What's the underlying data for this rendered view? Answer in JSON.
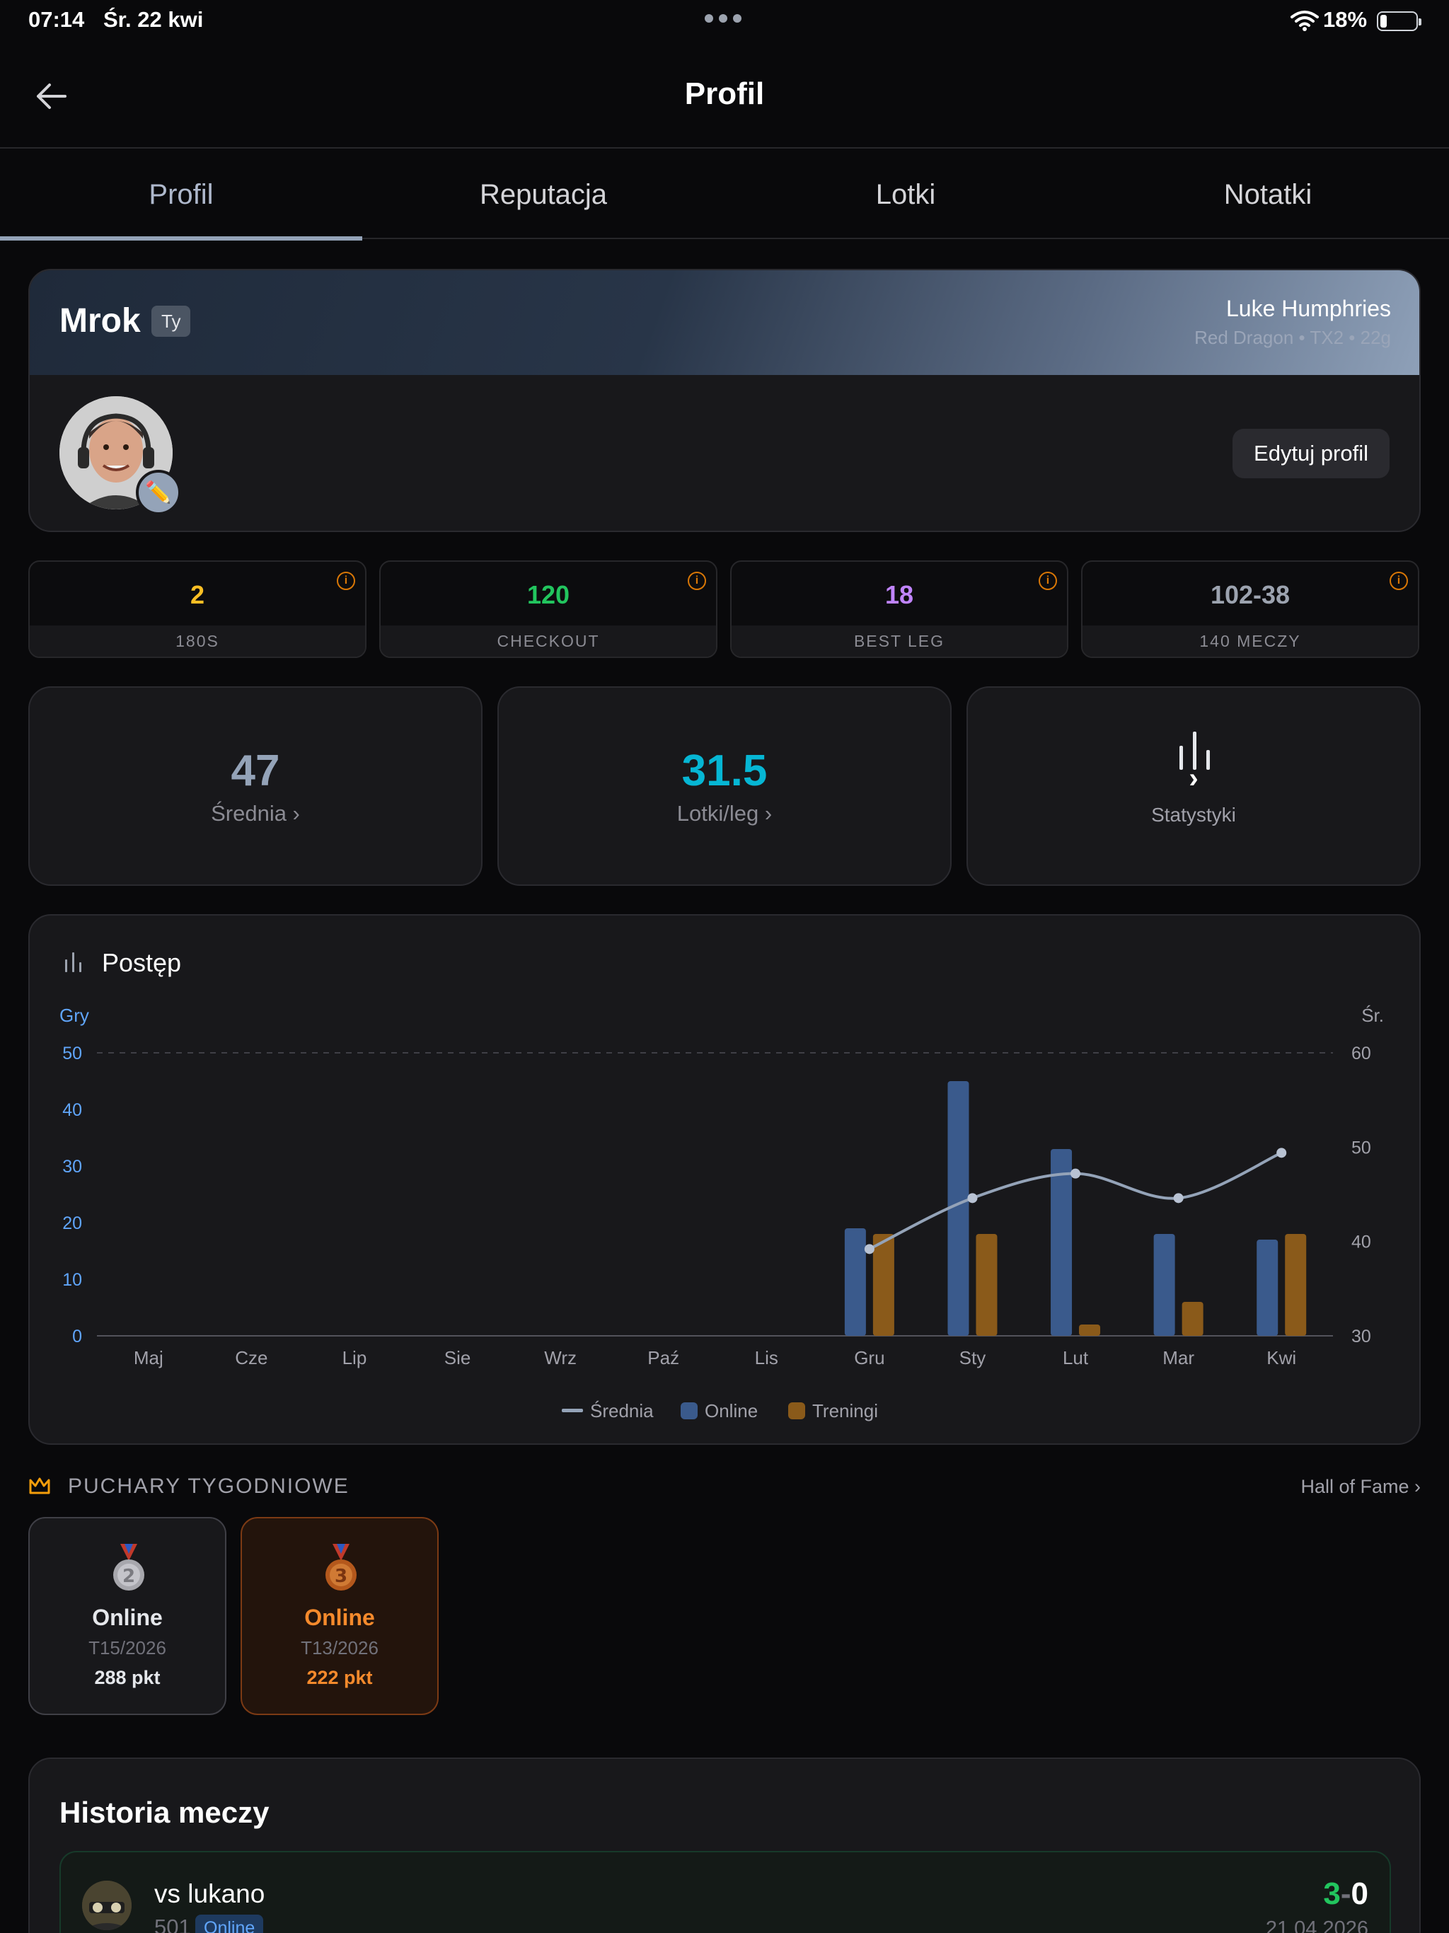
{
  "status_bar": {
    "time": "07:14",
    "date": "Śr. 22 kwi",
    "battery": "18%"
  },
  "header": {
    "title": "Profil"
  },
  "tabs": [
    {
      "label": "Profil",
      "active": true
    },
    {
      "label": "Reputacja",
      "active": false
    },
    {
      "label": "Lotki",
      "active": false
    },
    {
      "label": "Notatki",
      "active": false
    }
  ],
  "profile": {
    "nickname": "Mrok",
    "you_badge": "Ty",
    "player": "Luke Humphries",
    "darts": "Red Dragon • TX2 • 22g",
    "edit_label": "Edytuj profil"
  },
  "stats": [
    {
      "value": "2",
      "label": "180S",
      "color": "#fbbf24"
    },
    {
      "value": "120",
      "label": "CHECKOUT",
      "color": "#22c55e"
    },
    {
      "value": "18",
      "label": "BEST LEG",
      "color": "#c084fc"
    },
    {
      "value": "102-38",
      "label": "140 MECZY",
      "color": "#9ca3af"
    }
  ],
  "tiles": {
    "average": {
      "value": "47",
      "label": "Średnia ›"
    },
    "darts_per_leg": {
      "value": "31.5",
      "label": "Lotki/leg ›"
    },
    "stats": {
      "chevron": "›",
      "label": "Statystyki"
    }
  },
  "progress": {
    "title": "Postęp",
    "chart_data": {
      "type": "bar",
      "categories": [
        "Maj",
        "Cze",
        "Lip",
        "Sie",
        "Wrz",
        "Paź",
        "Lis",
        "Gru",
        "Sty",
        "Lut",
        "Mar",
        "Kwi"
      ],
      "ylabel_left": "Gry",
      "ylabel_right": "Śr.",
      "ylim_left": [
        0,
        50
      ],
      "ylim_right": [
        30,
        60
      ],
      "yticks_left": [
        0,
        10,
        20,
        30,
        40,
        50
      ],
      "yticks_right": [
        30,
        40,
        50,
        60
      ],
      "series": [
        {
          "name": "Online",
          "type": "bar",
          "axis": "left",
          "color": "#3a5a8c",
          "values": [
            0,
            0,
            0,
            0,
            0,
            0,
            0,
            19,
            45,
            33,
            18,
            17
          ]
        },
        {
          "name": "Treningi",
          "type": "bar",
          "axis": "left",
          "color": "#8a5a1a",
          "values": [
            0,
            0,
            0,
            0,
            0,
            0,
            0,
            18,
            18,
            2,
            6,
            18
          ]
        },
        {
          "name": "Średnia",
          "type": "line",
          "axis": "right",
          "color": "#94a3b8",
          "values": [
            null,
            null,
            null,
            null,
            null,
            null,
            null,
            39.2,
            44.6,
            47.2,
            44.6,
            49.4
          ]
        }
      ],
      "legend": [
        "Średnia",
        "Online",
        "Treningi"
      ],
      "legend_position": "bottom"
    }
  },
  "cups": {
    "title": "PUCHARY TYGODNIOWE",
    "hall_of_fame": "Hall of Fame ›",
    "items": [
      {
        "place": "2",
        "type": "Online",
        "week": "T15/2026",
        "points": "288 pkt"
      },
      {
        "place": "3",
        "type": "Online",
        "week": "T13/2026",
        "points": "222 pkt"
      }
    ]
  },
  "history": {
    "title": "Historia meczy",
    "matches": [
      {
        "opponent": "vs lukano",
        "game": "501",
        "mode": "Online",
        "score_won": "3",
        "score_sep": "-",
        "score_lost": "0",
        "date": "21.04.2026"
      }
    ]
  }
}
